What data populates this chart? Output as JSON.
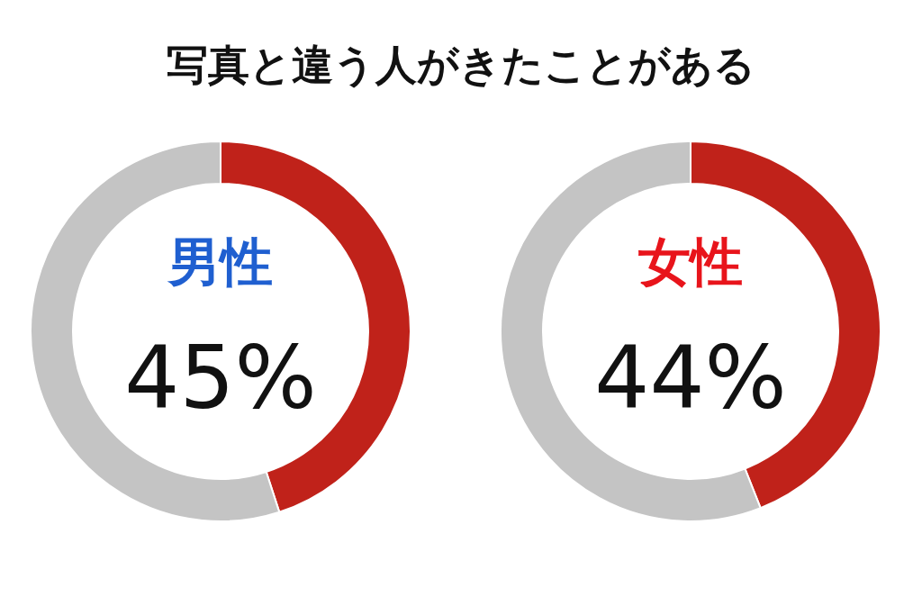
{
  "chart_data": [
    {
      "type": "donut",
      "title": "写真と違う人がきたことがある",
      "annotations": [
        "男性",
        "45%"
      ],
      "categories": [
        null,
        null
      ],
      "values": [
        45,
        55
      ],
      "colors": [
        "#c0221a",
        "#c4c4c4"
      ]
    },
    {
      "type": "donut",
      "annotations": [
        "女性",
        "44%"
      ],
      "categories": [
        null,
        null
      ],
      "values": [
        44,
        56
      ],
      "colors": [
        "#c0221a",
        "#c4c4c4"
      ]
    }
  ]
}
